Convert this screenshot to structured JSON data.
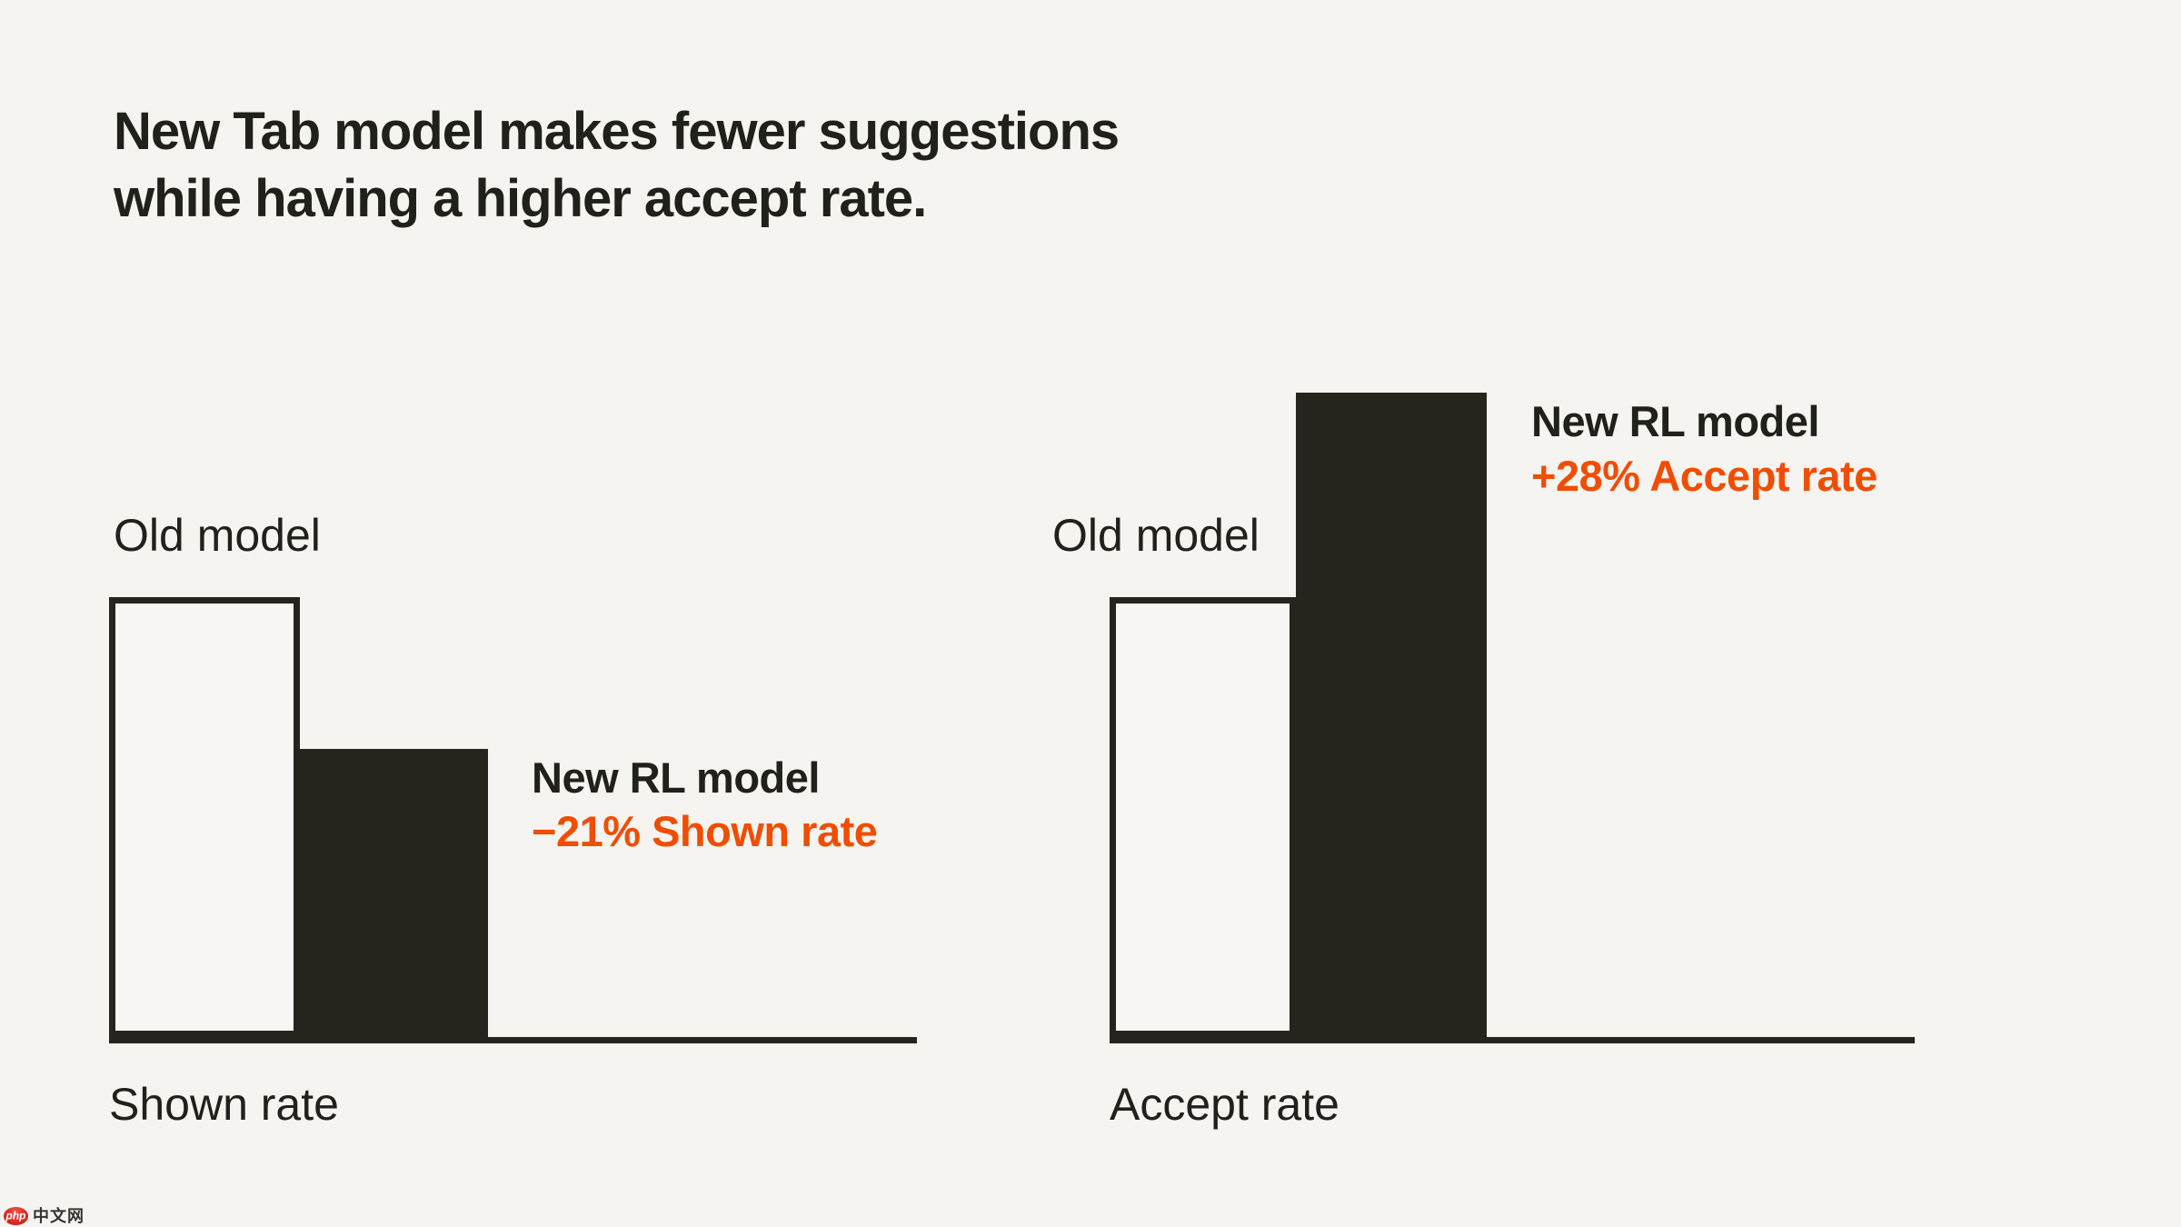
{
  "page": {
    "title_line1": "New Tab model makes fewer suggestions",
    "title_line2": "while having a higher accept rate."
  },
  "colors": {
    "background": "#f5f4f0",
    "ink": "#21211b",
    "bar_dark": "#25251e",
    "accent_orange": "#f04d00",
    "logo_red": "#d92b25"
  },
  "charts": {
    "shown": {
      "old_label": "Old model",
      "axis_label": "Shown rate",
      "annotation_title": "New RL model",
      "annotation_delta": "−21% Shown rate"
    },
    "accept": {
      "old_label": "Old model",
      "axis_label": "Accept rate",
      "annotation_title": "New RL model",
      "annotation_delta": "+28% Accept rate"
    }
  },
  "watermark": {
    "logo_text": "php",
    "logo_suffix": "中文网"
  },
  "chart_data": [
    {
      "type": "bar",
      "title": "Shown rate",
      "categories": [
        "Old model",
        "New RL model"
      ],
      "values": [
        1.0,
        0.655
      ],
      "unit": "relative bar height (Old model = 1.0)",
      "annotation": "New RL model −21% Shown rate",
      "bar_styles": [
        "outline",
        "solid"
      ],
      "legend_position": "none",
      "grid": false
    },
    {
      "type": "bar",
      "title": "Accept rate",
      "categories": [
        "Old model",
        "New RL model"
      ],
      "values": [
        1.0,
        1.465
      ],
      "unit": "relative bar height (Old model = 1.0)",
      "annotation": "New RL model +28% Accept rate",
      "bar_styles": [
        "outline",
        "solid"
      ],
      "legend_position": "none",
      "grid": false
    }
  ]
}
